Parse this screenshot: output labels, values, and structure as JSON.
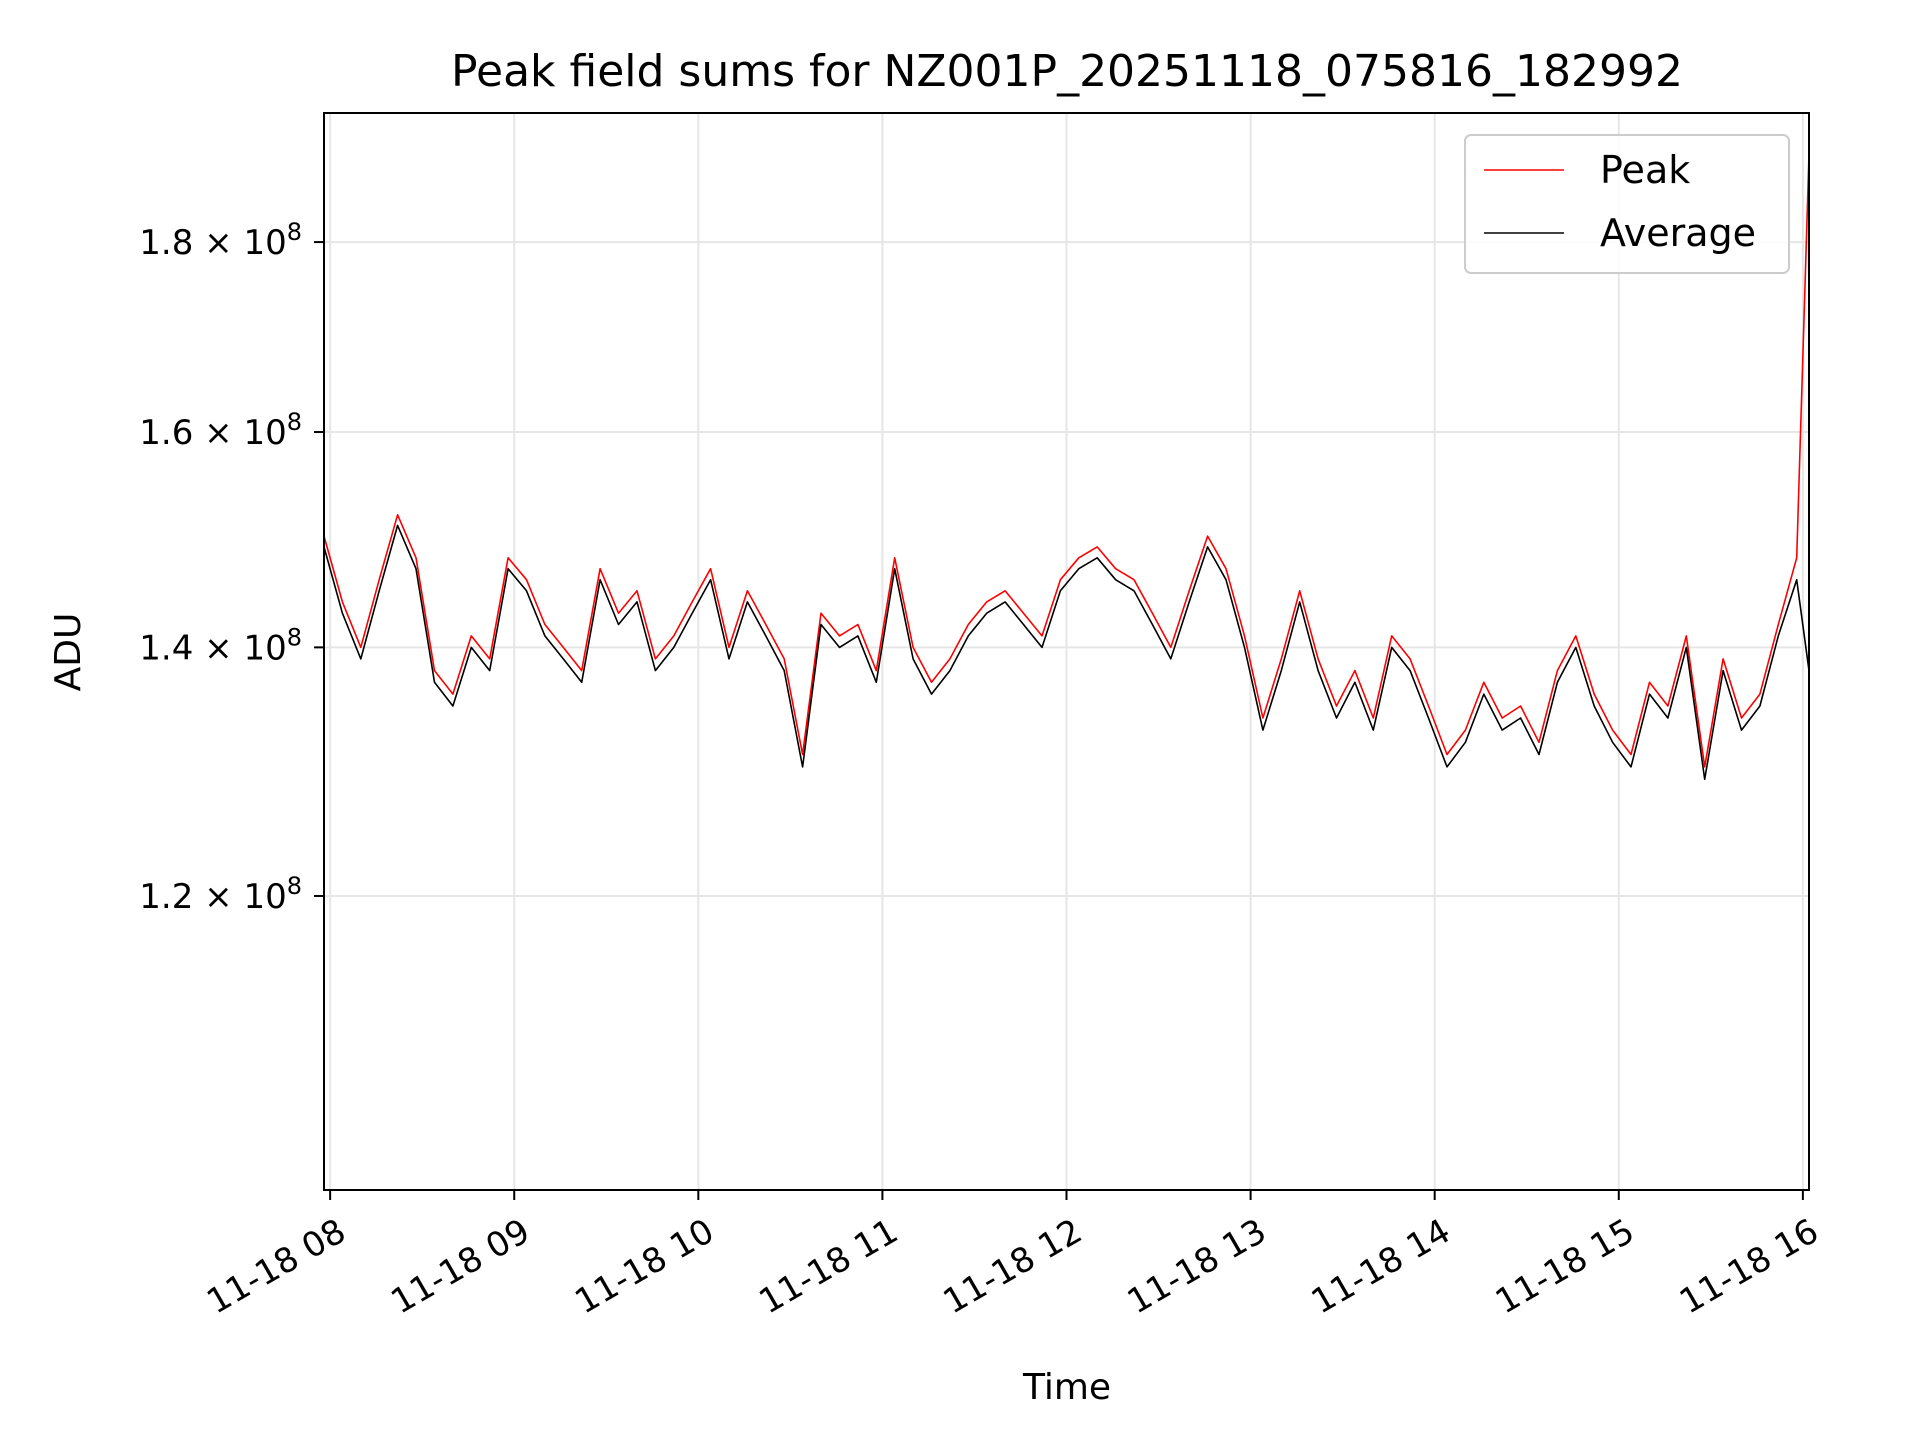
{
  "chart_data": {
    "type": "line",
    "title": "Peak field sums for NZ001P_20251118_075816_182992",
    "xlabel": "Time",
    "ylabel": "ADU",
    "x_range": [
      "2025-11-18 07:58",
      "2025-11-18 16:02"
    ],
    "ylim": [
      100000000,
      195000000
    ],
    "y_scale": "log",
    "grid": true,
    "legend_position": "top-right",
    "x_ticks": [
      {
        "t": "2025-11-18 08:00",
        "label": "11-18 08"
      },
      {
        "t": "2025-11-18 09:00",
        "label": "11-18 09"
      },
      {
        "t": "2025-11-18 10:00",
        "label": "11-18 10"
      },
      {
        "t": "2025-11-18 11:00",
        "label": "11-18 11"
      },
      {
        "t": "2025-11-18 12:00",
        "label": "11-18 12"
      },
      {
        "t": "2025-11-18 13:00",
        "label": "11-18 13"
      },
      {
        "t": "2025-11-18 14:00",
        "label": "11-18 14"
      },
      {
        "t": "2025-11-18 15:00",
        "label": "11-18 15"
      },
      {
        "t": "2025-11-18 16:00",
        "label": "11-18 16"
      }
    ],
    "y_ticks": [
      {
        "value": 120000000,
        "mantissa": "1.2",
        "exp": "8"
      },
      {
        "value": 140000000,
        "mantissa": "1.4",
        "exp": "8"
      },
      {
        "value": 160000000,
        "mantissa": "1.6",
        "exp": "8"
      },
      {
        "value": 180000000,
        "mantissa": "1.8",
        "exp": "8"
      }
    ],
    "x": [
      "2025-11-18 07:58",
      "2025-11-18 08:04",
      "2025-11-18 08:10",
      "2025-11-18 08:16",
      "2025-11-18 08:22",
      "2025-11-18 08:28",
      "2025-11-18 08:34",
      "2025-11-18 08:40",
      "2025-11-18 08:46",
      "2025-11-18 08:52",
      "2025-11-18 08:58",
      "2025-11-18 09:04",
      "2025-11-18 09:10",
      "2025-11-18 09:16",
      "2025-11-18 09:22",
      "2025-11-18 09:28",
      "2025-11-18 09:34",
      "2025-11-18 09:40",
      "2025-11-18 09:46",
      "2025-11-18 09:52",
      "2025-11-18 09:58",
      "2025-11-18 10:04",
      "2025-11-18 10:10",
      "2025-11-18 10:16",
      "2025-11-18 10:22",
      "2025-11-18 10:28",
      "2025-11-18 10:34",
      "2025-11-18 10:40",
      "2025-11-18 10:46",
      "2025-11-18 10:52",
      "2025-11-18 10:58",
      "2025-11-18 11:04",
      "2025-11-18 11:10",
      "2025-11-18 11:16",
      "2025-11-18 11:22",
      "2025-11-18 11:28",
      "2025-11-18 11:34",
      "2025-11-18 11:40",
      "2025-11-18 11:46",
      "2025-11-18 11:52",
      "2025-11-18 11:58",
      "2025-11-18 12:04",
      "2025-11-18 12:10",
      "2025-11-18 12:16",
      "2025-11-18 12:22",
      "2025-11-18 12:28",
      "2025-11-18 12:34",
      "2025-11-18 12:40",
      "2025-11-18 12:46",
      "2025-11-18 12:52",
      "2025-11-18 12:58",
      "2025-11-18 13:04",
      "2025-11-18 13:10",
      "2025-11-18 13:16",
      "2025-11-18 13:22",
      "2025-11-18 13:28",
      "2025-11-18 13:34",
      "2025-11-18 13:40",
      "2025-11-18 13:46",
      "2025-11-18 13:52",
      "2025-11-18 13:58",
      "2025-11-18 14:04",
      "2025-11-18 14:10",
      "2025-11-18 14:16",
      "2025-11-18 14:22",
      "2025-11-18 14:28",
      "2025-11-18 14:34",
      "2025-11-18 14:40",
      "2025-11-18 14:46",
      "2025-11-18 14:52",
      "2025-11-18 14:58",
      "2025-11-18 15:04",
      "2025-11-18 15:10",
      "2025-11-18 15:16",
      "2025-11-18 15:22",
      "2025-11-18 15:28",
      "2025-11-18 15:34",
      "2025-11-18 15:40",
      "2025-11-18 15:46",
      "2025-11-18 15:52",
      "2025-11-18 15:58",
      "2025-11-18 16:02"
    ],
    "series": [
      {
        "name": "Peak",
        "color": "#ff0000",
        "values": [
          150000000,
          144000000,
          140000000,
          146000000,
          152000000,
          148000000,
          138000000,
          136000000,
          141000000,
          139000000,
          148000000,
          146000000,
          142000000,
          140000000,
          138000000,
          147000000,
          143000000,
          145000000,
          139000000,
          141000000,
          144000000,
          147000000,
          140000000,
          145000000,
          142000000,
          139000000,
          131000000,
          143000000,
          141000000,
          142000000,
          138000000,
          148000000,
          140000000,
          137000000,
          139000000,
          142000000,
          144000000,
          145000000,
          143000000,
          141000000,
          146000000,
          148000000,
          149000000,
          147000000,
          146000000,
          143000000,
          140000000,
          145000000,
          150000000,
          147000000,
          141000000,
          134000000,
          139000000,
          145000000,
          139000000,
          135000000,
          138000000,
          134000000,
          141000000,
          139000000,
          135000000,
          131000000,
          133000000,
          137000000,
          134000000,
          135000000,
          132000000,
          138000000,
          141000000,
          136000000,
          133000000,
          131000000,
          137000000,
          135000000,
          141000000,
          130000000,
          139000000,
          134000000,
          136000000,
          142000000,
          148000000,
          190000000
        ]
      },
      {
        "name": "Average",
        "color": "#000000",
        "values": [
          149000000,
          143000000,
          139000000,
          145000000,
          151000000,
          147000000,
          137000000,
          135000000,
          140000000,
          138000000,
          147000000,
          145000000,
          141000000,
          139000000,
          137000000,
          146000000,
          142000000,
          144000000,
          138000000,
          140000000,
          143000000,
          146000000,
          139000000,
          144000000,
          141000000,
          138000000,
          130000000,
          142000000,
          140000000,
          141000000,
          137000000,
          147000000,
          139000000,
          136000000,
          138000000,
          141000000,
          143000000,
          144000000,
          142000000,
          140000000,
          145000000,
          147000000,
          148000000,
          146000000,
          145000000,
          142000000,
          139000000,
          144000000,
          149000000,
          146000000,
          140000000,
          133000000,
          138000000,
          144000000,
          138000000,
          134000000,
          137000000,
          133000000,
          140000000,
          138000000,
          134000000,
          130000000,
          132000000,
          136000000,
          133000000,
          134000000,
          131000000,
          137000000,
          140000000,
          135000000,
          132000000,
          130000000,
          136000000,
          134000000,
          140000000,
          129000000,
          138000000,
          133000000,
          135000000,
          141000000,
          146000000,
          138000000
        ]
      }
    ]
  }
}
